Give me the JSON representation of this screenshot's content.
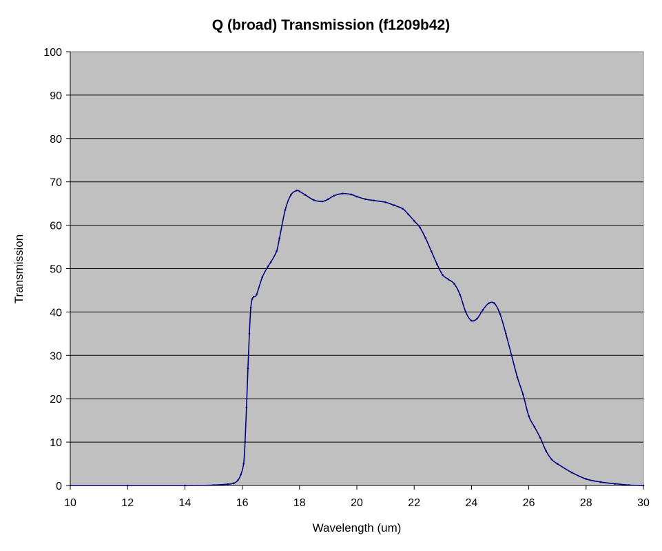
{
  "chart_data": {
    "type": "line",
    "title": "Q (broad) Transmission (f1209b42)",
    "xlabel": "Wavelength (um)",
    "ylabel": "Transmission",
    "xlim": [
      10,
      30
    ],
    "ylim": [
      0,
      100
    ],
    "xticks": [
      10,
      12,
      14,
      16,
      18,
      20,
      22,
      24,
      26,
      28,
      30
    ],
    "yticks": [
      0,
      10,
      20,
      30,
      40,
      50,
      60,
      70,
      80,
      90,
      100
    ],
    "grid": "horizontal",
    "legend": "none",
    "plot_background": "#c0c0c0",
    "series_color": "#000080",
    "series": [
      {
        "x": [
          10,
          12,
          14,
          15,
          15.5,
          15.7,
          15.85,
          15.95,
          16.05,
          16.1,
          16.15,
          16.2,
          16.25,
          16.3,
          16.35,
          16.4,
          16.5,
          16.7,
          16.9,
          17.0,
          17.2,
          17.3,
          17.5,
          17.7,
          17.9,
          18.0,
          18.2,
          18.5,
          18.8,
          19.0,
          19.2,
          19.5,
          19.8,
          20.0,
          20.3,
          20.6,
          21.0,
          21.3,
          21.6,
          21.8,
          22.0,
          22.2,
          22.4,
          22.6,
          22.8,
          23.0,
          23.2,
          23.4,
          23.6,
          23.8,
          24.0,
          24.2,
          24.4,
          24.6,
          24.8,
          25.0,
          25.2,
          25.4,
          25.6,
          25.8,
          26.0,
          26.2,
          26.4,
          26.6,
          26.8,
          27.0,
          27.5,
          28.0,
          28.5,
          29.0,
          29.5,
          30.0
        ],
        "y": [
          0,
          0,
          0,
          0.1,
          0.3,
          0.5,
          1.2,
          2.5,
          5,
          10,
          18,
          27,
          35,
          41,
          43,
          43.5,
          44,
          48,
          50.5,
          51.5,
          54,
          57,
          63.5,
          67,
          68,
          67.8,
          67,
          65.8,
          65.5,
          66,
          66.8,
          67.3,
          67.1,
          66.6,
          66,
          65.7,
          65.3,
          64.6,
          63.8,
          62.5,
          61,
          59.5,
          57,
          54,
          51,
          48.5,
          47.5,
          46.5,
          44,
          40,
          38,
          38.5,
          40.5,
          42,
          42,
          39.5,
          35,
          30,
          25,
          21,
          16,
          13.5,
          11,
          8,
          6,
          5,
          3,
          1.5,
          0.8,
          0.4,
          0.1,
          0
        ]
      }
    ]
  }
}
